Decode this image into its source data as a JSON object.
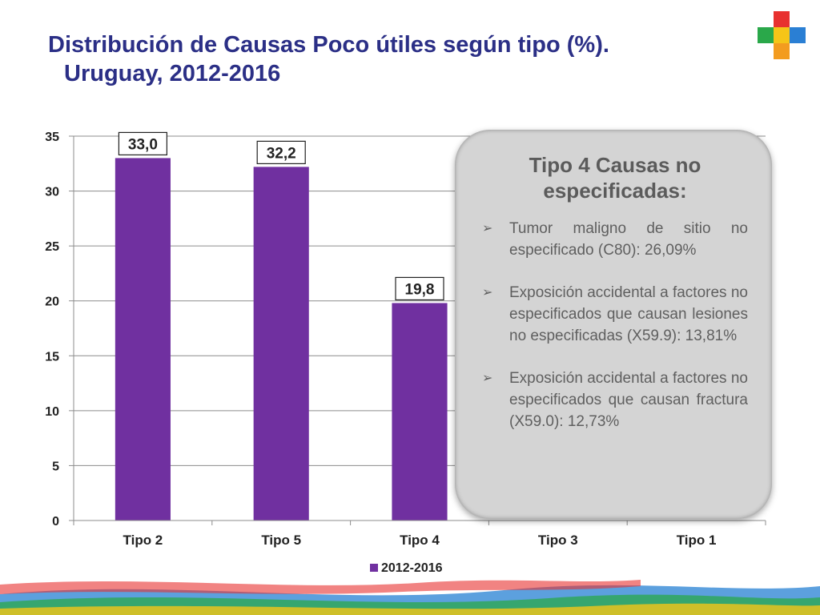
{
  "header": {
    "title_line1": "Distribución de Causas Poco útiles según tipo (%).",
    "title_line2": "Uruguay, 2012-2016"
  },
  "callout": {
    "title": "Tipo 4 Causas no especificadas:",
    "items": [
      "Tumor maligno de sitio no especificado (C80): 26,09%",
      "Exposición accidental a factores no especificados que causan lesiones no especificadas (X59.9): 13,81%",
      "Exposición accidental a factores no especificados que causan fractura (X59.0): 12,73%"
    ],
    "bullet_icon": "arrow-bullet-icon"
  },
  "colors": {
    "bar": "#7030a0",
    "title": "#2b2f86",
    "grid": "#8c8c8c",
    "callout_bg": "#d4d4d4"
  },
  "chart_data": {
    "type": "bar",
    "categories": [
      "Tipo 2",
      "Tipo 5",
      "Tipo 4",
      "Tipo 3",
      "Tipo 1"
    ],
    "series": [
      {
        "name": "2012-2016",
        "values": [
          33.0,
          32.2,
          19.8,
          null,
          null
        ]
      }
    ],
    "data_labels": [
      "33,0",
      "32,2",
      "19,8",
      "",
      ""
    ],
    "ylim": [
      0,
      35
    ],
    "yticks": [
      0,
      5,
      10,
      15,
      20,
      25,
      30,
      35
    ],
    "grid": true,
    "legend": "bottom"
  }
}
